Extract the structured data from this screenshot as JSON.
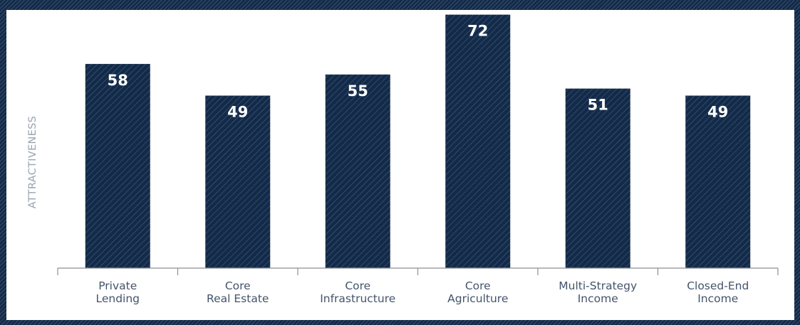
{
  "chart_data": {
    "type": "bar",
    "ylabel": "ATTRACTIVENESS",
    "categories": [
      [
        "Private",
        "Lending"
      ],
      [
        "Core",
        "Real Estate"
      ],
      [
        "Core",
        "Infrastructure"
      ],
      [
        "Core",
        "Agriculture"
      ],
      [
        "Multi-Strategy",
        "Income"
      ],
      [
        "Closed-End",
        "Income"
      ]
    ],
    "values": [
      58,
      49,
      55,
      72,
      51,
      49
    ],
    "ylim": [
      0,
      100
    ],
    "grid": false,
    "legend": "none",
    "colors": {
      "bar": "#132b4a",
      "hatch": "#ffffff",
      "data_label": "#ffffff",
      "axis": "#8a8f96",
      "tick_text": "#44546a",
      "ylabel_text": "#9aa3ad"
    }
  }
}
